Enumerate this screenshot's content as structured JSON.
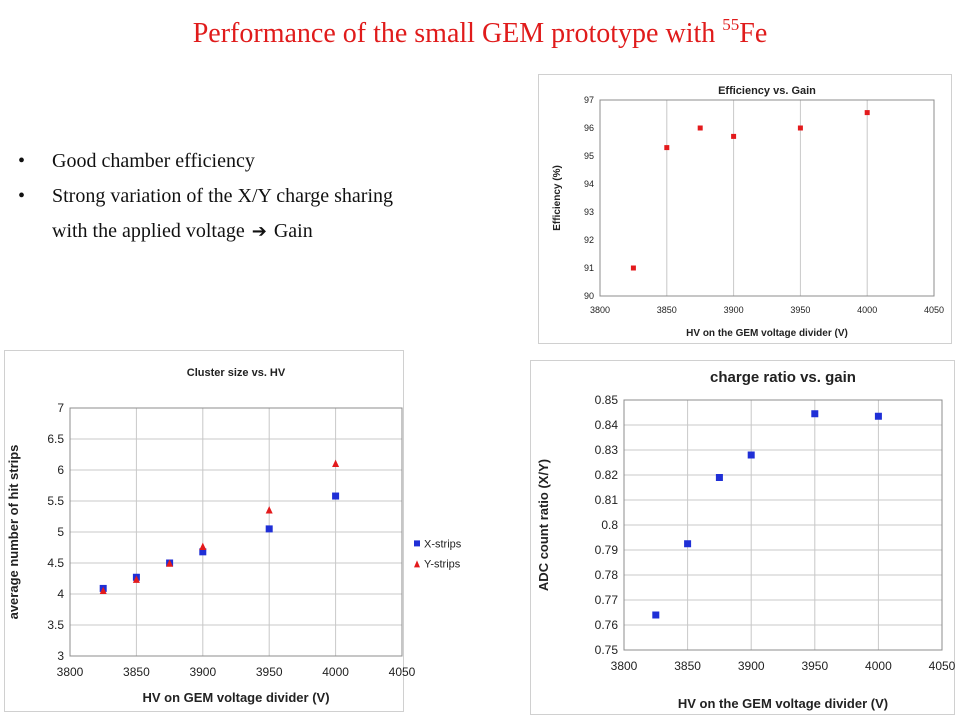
{
  "slide": {
    "title_prefix": "Performance of the small GEM prototype with ",
    "title_superscript": "55",
    "title_suffix": "Fe",
    "bullets": [
      {
        "text": "Good chamber efficiency"
      },
      {
        "line1": "Strong  variation of the X/Y charge sharing",
        "line2_prefix": "with the applied voltage ",
        "line2_suffix": " Gain",
        "arrow_icon": "right-arrow-icon"
      }
    ],
    "bullet_icon": "bullet-dot-icon",
    "colors": {
      "title": "#e01b1b",
      "series_red": "#e31a1c",
      "series_blue": "#1f2fd6",
      "grid": "#c8c8c8"
    }
  },
  "chart_data": [
    {
      "id": "efficiency",
      "type": "scatter",
      "title": "Efficiency vs. Gain",
      "xlabel": "HV on the GEM voltage divider (V)",
      "ylabel": "Efficiency (%)",
      "xlim": [
        3800,
        4050
      ],
      "ylim": [
        90,
        97
      ],
      "xticks": [
        3800,
        3850,
        3900,
        3950,
        4000,
        4050
      ],
      "yticks": [
        90,
        91,
        92,
        93,
        94,
        95,
        96,
        97
      ],
      "grid": "vertical",
      "legend": "none",
      "series": [
        {
          "color": "#e31a1c",
          "marker": "square",
          "x": [
            3825,
            3850,
            3875,
            3900,
            3950,
            4000
          ],
          "y": [
            91.0,
            95.3,
            96.0,
            95.7,
            96.0,
            96.55
          ]
        }
      ]
    },
    {
      "id": "cluster",
      "type": "scatter",
      "title": "Cluster size vs. HV",
      "xlabel": "HV on GEM voltage divider (V)",
      "ylabel": "average number of hit strips",
      "xlim": [
        3800,
        4050
      ],
      "ylim": [
        3,
        7
      ],
      "xticks": [
        3800,
        3850,
        3900,
        3950,
        4000,
        4050
      ],
      "yticks": [
        3,
        3.5,
        4,
        4.5,
        5,
        5.5,
        6,
        6.5,
        7
      ],
      "grid": "both",
      "legend": "right",
      "series": [
        {
          "name": "X-strips",
          "color": "#1f2fd6",
          "marker": "square",
          "x": [
            3825,
            3850,
            3875,
            3900,
            3950,
            4000
          ],
          "y": [
            4.09,
            4.27,
            4.5,
            4.68,
            5.05,
            5.58
          ]
        },
        {
          "name": "Y-strips",
          "color": "#e31a1c",
          "marker": "triangle",
          "x": [
            3825,
            3850,
            3875,
            3900,
            3950,
            4000
          ],
          "y": [
            4.05,
            4.23,
            4.49,
            4.76,
            5.35,
            6.1
          ]
        }
      ]
    },
    {
      "id": "charge",
      "type": "scatter",
      "title": "charge ratio vs. gain",
      "xlabel": "HV on the GEM voltage divider (V)",
      "ylabel": "ADC count ratio (X/Y)",
      "xlim": [
        3800,
        4050
      ],
      "ylim": [
        0.75,
        0.85
      ],
      "xticks": [
        3800,
        3850,
        3900,
        3950,
        4000,
        4050
      ],
      "yticks": [
        0.75,
        0.76,
        0.77,
        0.78,
        0.79,
        0.8,
        0.81,
        0.82,
        0.83,
        0.84,
        0.85
      ],
      "grid": "both",
      "legend": "none",
      "series": [
        {
          "color": "#1f2fd6",
          "marker": "square",
          "x": [
            3825,
            3850,
            3875,
            3900,
            3950,
            4000
          ],
          "y": [
            0.764,
            0.7925,
            0.819,
            0.828,
            0.8445,
            0.8435
          ]
        }
      ]
    }
  ]
}
